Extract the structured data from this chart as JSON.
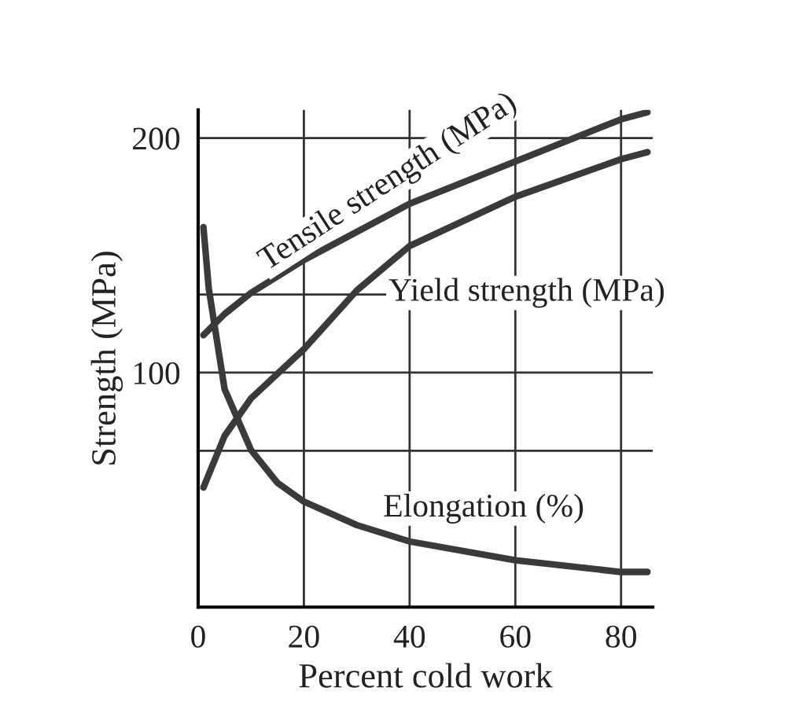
{
  "chart_data": {
    "type": "line",
    "xlabel": "Percent cold work",
    "ylabel": "Strength (MPa)",
    "xlim": [
      0,
      86
    ],
    "ylim": [
      0,
      212
    ],
    "xticks": [
      0,
      20,
      40,
      60,
      80
    ],
    "yticks": [
      {
        "value": 66.7,
        "label": null
      },
      100,
      {
        "value": 133.3,
        "label": null
      },
      200
    ],
    "grid": true,
    "legend": false,
    "marker": "none",
    "line_style": "solid",
    "series": [
      {
        "name": "Tensile strength (MPa)",
        "color": "#3a3a3a",
        "x": [
          1,
          5,
          10,
          20,
          40,
          60,
          80,
          85
        ],
        "values": [
          116,
          125,
          134,
          148,
          172,
          190,
          208,
          211
        ]
      },
      {
        "name": "Yield strength (MPa)",
        "color": "#3a3a3a",
        "x": [
          1,
          5,
          10,
          20,
          30,
          40,
          60,
          80,
          85
        ],
        "values": [
          51,
          73,
          89,
          110,
          135,
          154,
          175,
          191,
          194
        ]
      },
      {
        "name": "Elongation (%)",
        "color": "#3a3a3a",
        "x": [
          1,
          2,
          5,
          10,
          15,
          20,
          30,
          40,
          60,
          80,
          85
        ],
        "values": [
          162,
          136,
          93,
          67,
          53,
          45,
          35,
          28,
          20,
          15,
          15
        ]
      }
    ]
  }
}
